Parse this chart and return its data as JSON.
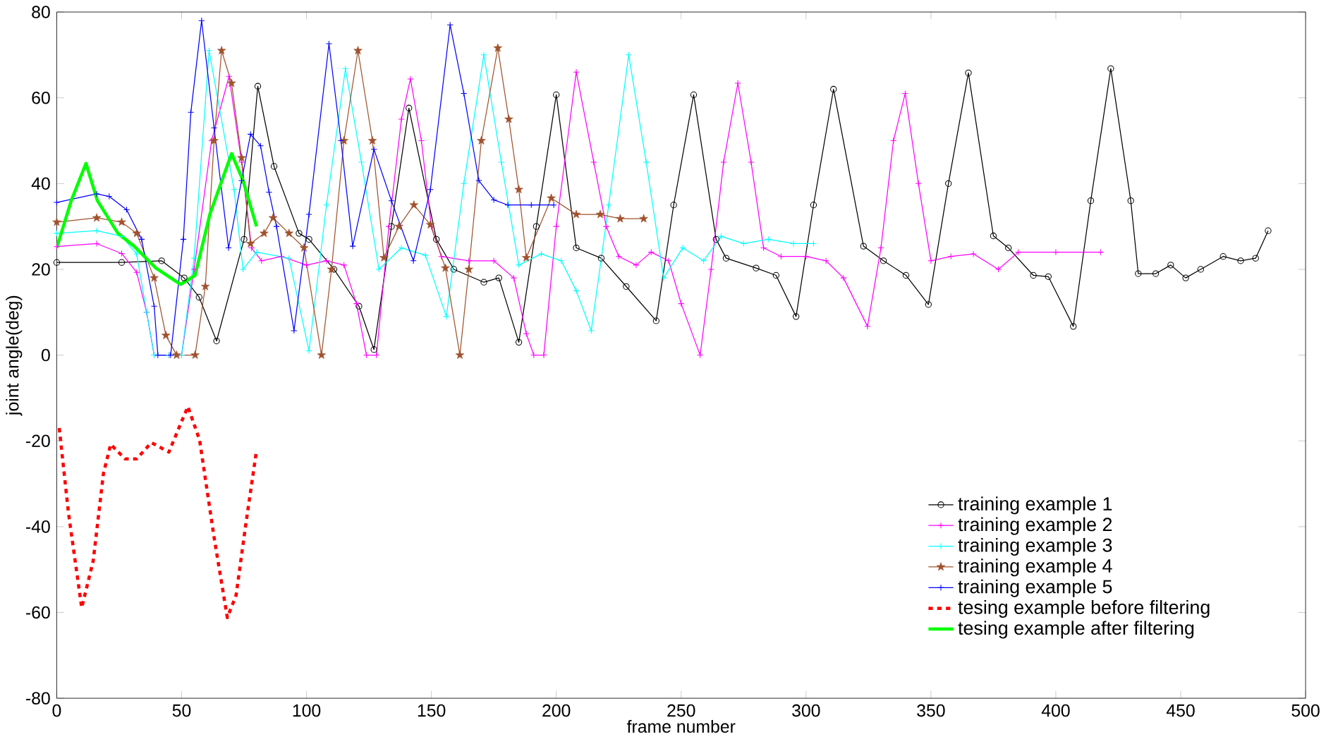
{
  "chart_data": {
    "type": "line",
    "xlabel": "frame number",
    "ylabel": "joint angle(deg)",
    "xlim": [
      0,
      500
    ],
    "ylim": [
      -80,
      80
    ],
    "xticks": [
      0,
      50,
      100,
      150,
      200,
      250,
      300,
      350,
      400,
      450,
      500
    ],
    "yticks": [
      -80,
      -60,
      -40,
      -20,
      0,
      20,
      40,
      60,
      80
    ],
    "grid": false,
    "legend": "bottom right",
    "series": [
      {
        "name": "training example 1",
        "color": "#000000",
        "marker": "circle",
        "line_style": "solid",
        "x": [
          0,
          26,
          42,
          51,
          57,
          64,
          75,
          80.5,
          87,
          97,
          101,
          111,
          121,
          127,
          134,
          141,
          152,
          159,
          171,
          177,
          185,
          192,
          200,
          208,
          218,
          228,
          240,
          247,
          255,
          264,
          268,
          280,
          288,
          296,
          303,
          311,
          323,
          331,
          340,
          349,
          357,
          365,
          375,
          381,
          391,
          397,
          407,
          414,
          422,
          430,
          433,
          440,
          446,
          452,
          458,
          467,
          474,
          480,
          485
        ],
        "values": [
          21.6,
          21.6,
          22,
          18,
          13.5,
          3.3,
          27,
          62.7,
          44,
          28.4,
          27,
          20,
          11.4,
          1.3,
          30,
          57.6,
          27,
          20,
          17,
          18,
          3,
          30,
          60.7,
          25,
          22.6,
          16,
          8,
          35,
          60.7,
          27,
          22.6,
          20.3,
          18.6,
          9,
          35,
          62,
          25.4,
          22,
          18.6,
          11.8,
          40,
          65.8,
          27.8,
          25,
          18.6,
          18.3,
          6.7,
          36,
          66.8,
          36,
          19,
          19,
          21,
          18,
          20,
          23,
          22,
          22.6,
          29
        ]
      },
      {
        "name": "training example 2",
        "color": "#ff00ff",
        "marker": "cross",
        "line_style": "solid",
        "x": [
          0,
          16,
          26,
          32,
          36,
          39,
          45,
          50,
          55,
          62,
          69,
          74,
          78,
          82,
          90,
          100,
          108,
          115,
          120,
          124,
          128,
          133,
          138,
          141.6,
          146,
          150,
          154,
          165,
          175,
          183,
          188,
          191,
          195,
          200,
          208,
          215,
          220,
          225,
          232,
          238,
          245,
          250,
          257.6,
          262,
          267,
          272.7,
          278,
          283,
          290,
          300,
          308,
          315,
          324.6,
          330,
          335,
          339.7,
          345,
          350,
          358,
          367,
          377,
          385,
          400,
          418
        ],
        "values": [
          25.3,
          26,
          23.7,
          19.3,
          10,
          0,
          0,
          0,
          20,
          50,
          65,
          45,
          25,
          22,
          23,
          21,
          22,
          21,
          12,
          0,
          0,
          30,
          55,
          64.4,
          50,
          30,
          23,
          22,
          22,
          18,
          5,
          0,
          0,
          30,
          66,
          45,
          30,
          23,
          21,
          24,
          22,
          12,
          0,
          20,
          45,
          63.4,
          45,
          25,
          23,
          23,
          22,
          18,
          6.7,
          25,
          50,
          61,
          40,
          22,
          23,
          23.6,
          20,
          24,
          24,
          24
        ]
      },
      {
        "name": "training example 3",
        "color": "#00ffff",
        "marker": "cross",
        "line_style": "solid",
        "x": [
          0,
          16,
          26,
          32,
          36,
          39,
          45,
          50,
          55,
          61,
          71,
          74.6,
          80,
          93,
          101,
          108,
          115.6,
          122,
          129,
          138,
          147.6,
          156,
          163,
          171,
          178,
          185,
          194,
          202,
          208,
          214,
          221,
          229,
          236,
          243,
          250.6,
          259,
          266,
          275,
          285,
          295,
          303
        ],
        "values": [
          28.4,
          29,
          27.7,
          23.6,
          10,
          0,
          0,
          0,
          22.6,
          71,
          38.6,
          20,
          24,
          22.6,
          1,
          35,
          66.8,
          45,
          20,
          25,
          23.3,
          9,
          40,
          70,
          45,
          21,
          23.6,
          22,
          15,
          5.7,
          35,
          70,
          45,
          18,
          25,
          22,
          27.7,
          26,
          27,
          26,
          26
        ]
      },
      {
        "name": "training example 4",
        "color": "#a0522d",
        "marker": "star",
        "line_style": "solid",
        "x": [
          0,
          16,
          26,
          32,
          39,
          43.7,
          48,
          55.4,
          59.5,
          63,
          66,
          70,
          74,
          77.6,
          83,
          86.6,
          93,
          99,
          106,
          110,
          115,
          120.6,
          126.4,
          131,
          137,
          143,
          149.6,
          155.6,
          161.4,
          165,
          170,
          176.6,
          181,
          185,
          188,
          198,
          208,
          217.6,
          225.6,
          235
        ],
        "values": [
          31,
          32,
          31,
          28.4,
          18,
          4.6,
          0,
          0,
          16,
          50,
          71,
          63.4,
          46,
          26,
          28.4,
          32,
          28.4,
          25,
          0,
          20,
          50,
          71,
          50,
          22.7,
          30,
          35,
          30.4,
          20.3,
          0,
          20,
          50,
          71.6,
          55,
          38.6,
          22.7,
          36.6,
          32.8,
          32.8,
          31.8,
          31.8
        ]
      },
      {
        "name": "training example 5",
        "color": "#0000ff",
        "marker": "cross",
        "line_style": "solid",
        "x": [
          0,
          16,
          21,
          28,
          34,
          39,
          40.5,
          45.6,
          50.7,
          53.7,
          58,
          63,
          68.8,
          74,
          77.6,
          81.6,
          85,
          88,
          95,
          101,
          109,
          113.8,
          118.5,
          127,
          134,
          142.8,
          149.6,
          157.5,
          163,
          169,
          175,
          180.6,
          190,
          199
        ],
        "values": [
          35.6,
          37.6,
          37,
          33.9,
          27,
          11.4,
          0,
          0,
          27,
          56.6,
          78,
          53,
          25,
          40.7,
          51.5,
          48.8,
          38,
          30,
          5.7,
          32.8,
          72.6,
          50,
          25.4,
          48,
          36,
          22,
          38.6,
          77,
          61,
          40.7,
          36.2,
          35,
          35,
          35
        ]
      },
      {
        "name": "tesing example before filtering",
        "color": "#ff0000",
        "marker": "none",
        "line_style": "dashed",
        "x": [
          1,
          4.7,
          10,
          14.6,
          18.7,
          21.6,
          27.4,
          32,
          37.9,
          44.9,
          52.5,
          57.2,
          63,
          68.3,
          71.8,
          75.8,
          79.9
        ],
        "values": [
          -17,
          -36.8,
          -58.9,
          -48,
          -27.6,
          -20.8,
          -24.2,
          -24.2,
          -20.4,
          -22.6,
          -12,
          -19.8,
          -42.5,
          -61.2,
          -56,
          -39,
          -22.6
        ]
      },
      {
        "name": "tesing example after filtering",
        "color": "#00ff00",
        "marker": "none",
        "line_style": "solid",
        "x": [
          0,
          5.8,
          11.7,
          16.3,
          24.5,
          31,
          39.7,
          49.6,
          55.4,
          61.3,
          70,
          74.6,
          80
        ],
        "values": [
          25,
          36,
          44.7,
          36,
          28.4,
          25.4,
          20.3,
          16.5,
          18.6,
          32.8,
          47,
          40.7,
          30
        ]
      }
    ]
  }
}
